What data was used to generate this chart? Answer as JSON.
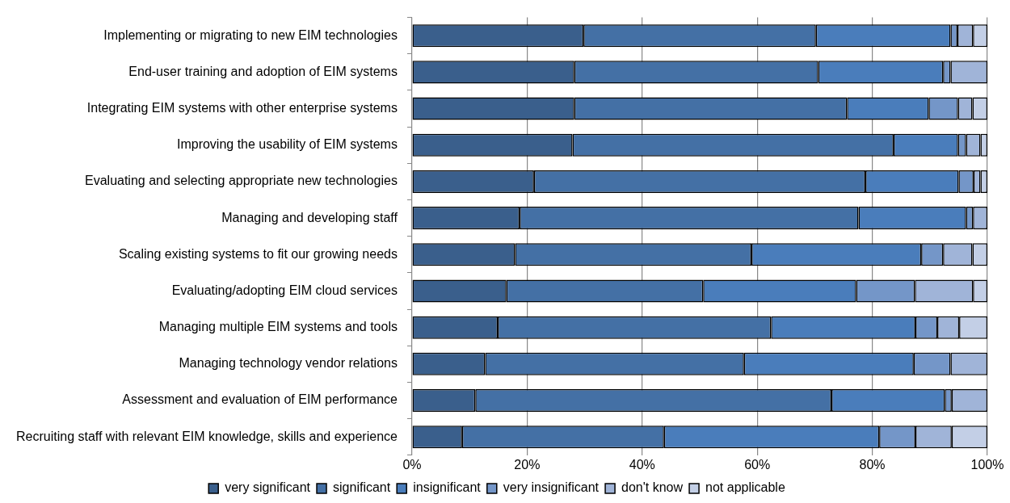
{
  "chart_data": {
    "type": "bar",
    "orientation": "horizontal",
    "stacked": true,
    "categories": [
      "Implementing or migrating to new EIM technologies",
      "End-user training and adoption of EIM systems",
      "Integrating EIM systems with other enterprise systems",
      "Improving the usability of EIM systems",
      "Evaluating and selecting appropriate new technologies",
      "Managing and developing staff",
      "Scaling existing systems to fit our growing needs",
      "Evaluating/adopting EIM cloud services",
      "Managing multiple EIM systems and tools",
      "Managing technology vendor relations",
      "Assessment and evaluation of EIM performance",
      "Recruiting staff with relevant EIM knowledge, skills and experience"
    ],
    "series": [
      {
        "name": "very significant",
        "color": "#3a5f8c",
        "values": [
          29.8,
          28.2,
          28.2,
          27.9,
          21.2,
          18.7,
          17.9,
          16.4,
          14.9,
          12.7,
          11.0,
          8.7
        ]
      },
      {
        "name": "significant",
        "color": "#4470a5",
        "values": [
          40.4,
          42.4,
          47.4,
          55.8,
          57.6,
          58.9,
          41.1,
          34.2,
          47.5,
          45.0,
          61.9,
          35.1
        ]
      },
      {
        "name": "insignificant",
        "color": "#4a7dbb",
        "values": [
          23.4,
          21.7,
          14.2,
          11.2,
          16.2,
          18.7,
          29.5,
          26.6,
          25.1,
          29.5,
          19.7,
          37.4
        ]
      },
      {
        "name": "very insignificant",
        "color": "#7496c8",
        "values": [
          1.2,
          1.3,
          5.1,
          1.4,
          2.6,
          1.2,
          3.8,
          10.2,
          3.8,
          6.4,
          1.2,
          6.3
        ]
      },
      {
        "name": "don't know",
        "color": "#a0b4d8",
        "values": [
          2.7,
          6.4,
          2.5,
          2.5,
          1.2,
          2.5,
          5.1,
          10.1,
          3.8,
          6.4,
          6.2,
          6.3
        ]
      },
      {
        "name": "not applicable",
        "color": "#c3cfe6",
        "values": [
          2.5,
          0,
          2.6,
          1.2,
          1.2,
          0,
          2.6,
          2.5,
          4.9,
          0,
          0,
          6.2
        ]
      }
    ],
    "xlim": [
      0,
      100
    ],
    "xticks": [
      {
        "value": 0,
        "label": "0%"
      },
      {
        "value": 20,
        "label": "20%"
      },
      {
        "value": 40,
        "label": "40%"
      },
      {
        "value": 60,
        "label": "60%"
      },
      {
        "value": 80,
        "label": "80%"
      },
      {
        "value": 100,
        "label": "100%"
      }
    ],
    "grid": "x",
    "legend": "bottom"
  }
}
